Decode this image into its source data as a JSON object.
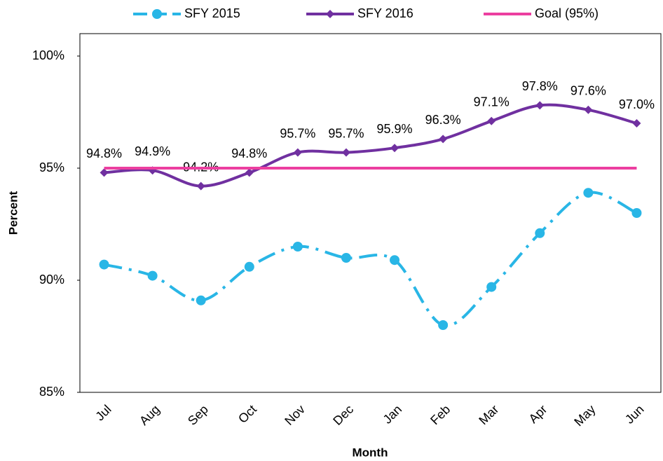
{
  "chart_data": {
    "type": "line",
    "x_label": "Month",
    "y_label": "Percent",
    "categories": [
      "Jul",
      "Aug",
      "Sep",
      "Oct",
      "Nov",
      "Dec",
      "Jan",
      "Feb",
      "Mar",
      "Apr",
      "May",
      "Jun"
    ],
    "ylim": [
      85,
      101
    ],
    "yticks": [
      {
        "value": 85,
        "label": "85%"
      },
      {
        "value": 90,
        "label": "90%"
      },
      {
        "value": 95,
        "label": "95%"
      },
      {
        "value": 100,
        "label": "100%"
      }
    ],
    "series": [
      {
        "name": "SFY 2015",
        "color": "#29b6e6",
        "dash": true,
        "marker": "circle",
        "values": [
          90.7,
          90.2,
          89.1,
          90.6,
          91.5,
          91.0,
          90.9,
          88.0,
          89.7,
          92.1,
          93.9,
          93.0
        ]
      },
      {
        "name": "SFY 2016",
        "color": "#7030a0",
        "marker": "diamond",
        "values": [
          94.8,
          94.9,
          94.2,
          94.8,
          95.7,
          95.7,
          95.9,
          96.3,
          97.1,
          97.8,
          97.6,
          97.0
        ],
        "value_labels": [
          "94.8%",
          "94.9%",
          "94.2%",
          "94.8%",
          "95.7%",
          "95.7%",
          "95.9%",
          "96.3%",
          "97.1%",
          "97.8%",
          "97.6%",
          "97.0%"
        ]
      },
      {
        "name": "Goal (95%)",
        "color": "#ec3fa0",
        "values": [
          95,
          95,
          95,
          95,
          95,
          95,
          95,
          95,
          95,
          95,
          95,
          95
        ]
      }
    ]
  }
}
